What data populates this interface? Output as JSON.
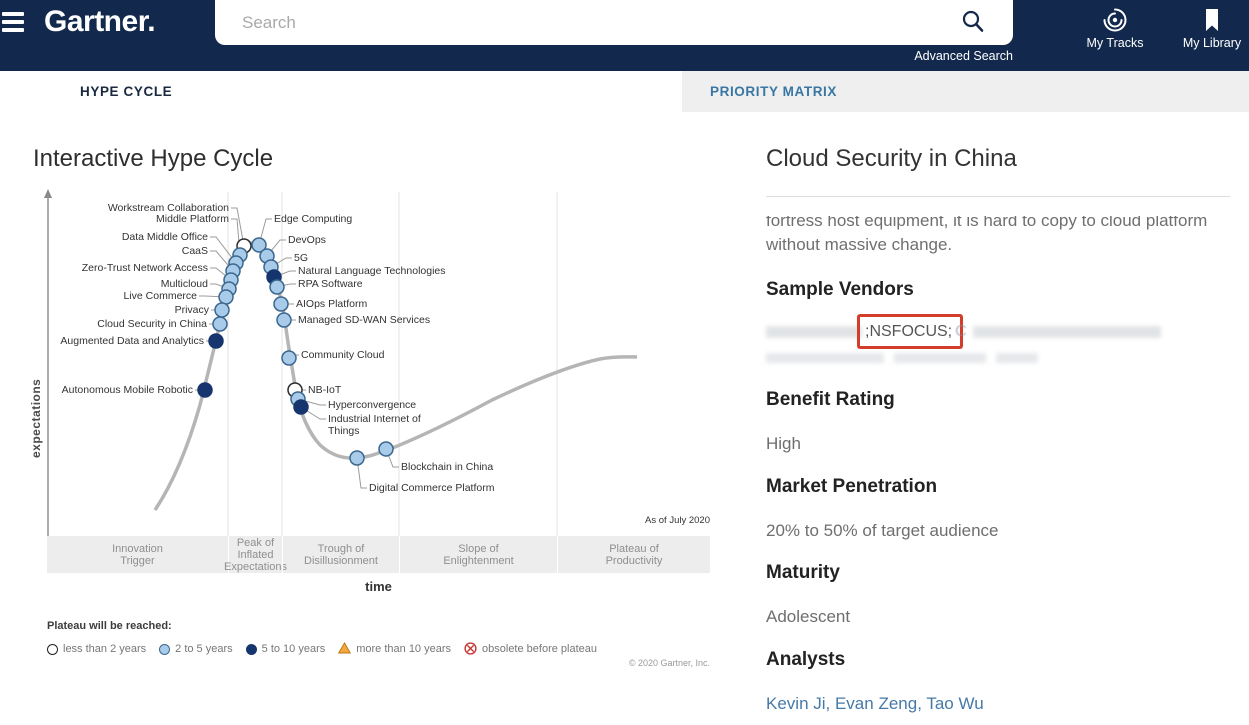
{
  "header": {
    "logo": "Gartner.",
    "search_placeholder": "Search",
    "advanced_search_label": "Advanced Search",
    "nav": [
      {
        "label": "My Tracks",
        "icon": "tracks-icon"
      },
      {
        "label": "My Library",
        "icon": "bookmark-icon"
      }
    ]
  },
  "tabs": [
    {
      "label": "HYPE CYCLE",
      "active": true
    },
    {
      "label": "PRIORITY MATRIX",
      "active": false
    }
  ],
  "chart_data": {
    "type": "scatter",
    "title": "Interactive Hype Cycle",
    "xlabel": "time",
    "ylabel": "expectations",
    "as_of": "As of July 2020",
    "copyright": "© 2020 Gartner, Inc.",
    "phases": [
      "Innovation\nTrigger",
      "Peak of\nInflated\nExpectations",
      "Trough of\nDisillusionment",
      "Slope of\nEnlightenment",
      "Plateau of\nProductivity"
    ],
    "legend_title": "Plateau will be reached:",
    "legend": [
      {
        "category": "less than 2 years",
        "marker": "open"
      },
      {
        "category": "2 to 5 years",
        "marker": "light"
      },
      {
        "category": "5 to 10 years",
        "marker": "dark"
      },
      {
        "category": "more than 10 years",
        "marker": "triangle"
      },
      {
        "category": "obsolete before plateau",
        "marker": "crossed"
      }
    ],
    "colors": {
      "light": "#a9cbea",
      "dark": "#16356e",
      "open": "#ffffff",
      "triangle": "#f5a73b",
      "crossed": "#c63633",
      "curve": "#b5b5b5"
    },
    "points": [
      {
        "label": "Workstream Collaboration",
        "marker": "open",
        "plateau": "less than 2 years",
        "side": "left",
        "dot": [
          244,
          134
        ],
        "anchor": [
          231,
          96
        ]
      },
      {
        "label": "Middle Platform",
        "marker": "light",
        "plateau": "2 to 5 years",
        "side": "left",
        "dot": [
          240,
          143
        ],
        "anchor": [
          231,
          107
        ]
      },
      {
        "label": "Data Middle Office",
        "marker": "light",
        "plateau": "2 to 5 years",
        "side": "left",
        "dot": [
          236,
          151
        ],
        "anchor": [
          210,
          125
        ]
      },
      {
        "label": "CaaS",
        "marker": "light",
        "plateau": "2 to 5 years",
        "side": "left",
        "dot": [
          233,
          159
        ],
        "anchor": [
          210,
          139
        ]
      },
      {
        "label": "Zero-Trust Network Access",
        "marker": "light",
        "plateau": "2 to 5 years",
        "side": "left",
        "dot": [
          231,
          168
        ],
        "anchor": [
          210,
          156
        ]
      },
      {
        "label": "Multicloud",
        "marker": "light",
        "plateau": "2 to 5 years",
        "side": "left",
        "dot": [
          229,
          177
        ],
        "anchor": [
          210,
          172
        ]
      },
      {
        "label": "Live Commerce",
        "marker": "light",
        "plateau": "2 to 5 years",
        "side": "left",
        "dot": [
          226,
          185
        ],
        "anchor": [
          199,
          184
        ]
      },
      {
        "label": "Privacy",
        "marker": "light",
        "plateau": "2 to 5 years",
        "side": "left",
        "dot": [
          222,
          198
        ],
        "anchor": [
          211,
          198
        ]
      },
      {
        "label": "Cloud Security in China",
        "marker": "light",
        "plateau": "2 to 5 years",
        "side": "left",
        "dot": [
          220,
          212
        ],
        "anchor": [
          209,
          212
        ]
      },
      {
        "label": "Augmented Data and Analytics",
        "marker": "dark",
        "plateau": "5 to 10 years",
        "side": "left",
        "dot": [
          216,
          229
        ],
        "anchor": [
          206,
          229
        ]
      },
      {
        "label": "Autonomous Mobile Robotic",
        "marker": "dark",
        "plateau": "5 to 10 years",
        "side": "left",
        "dot": [
          205,
          278
        ],
        "anchor": [
          195,
          278
        ]
      },
      {
        "label": "Edge Computing",
        "marker": "light",
        "plateau": "2 to 5 years",
        "side": "right",
        "dot": [
          259,
          133
        ],
        "anchor": [
          272,
          107
        ]
      },
      {
        "label": "DevOps",
        "marker": "light",
        "plateau": "2 to 5 years",
        "side": "right",
        "dot": [
          267,
          144
        ],
        "anchor": [
          286,
          128
        ]
      },
      {
        "label": "5G",
        "marker": "light",
        "plateau": "2 to 5 years",
        "side": "right",
        "dot": [
          271,
          155
        ],
        "anchor": [
          292,
          146
        ]
      },
      {
        "label": "Natural Language Technologies",
        "marker": "dark",
        "plateau": "5 to 10 years",
        "side": "right",
        "dot": [
          274,
          165
        ],
        "anchor": [
          296,
          159
        ]
      },
      {
        "label": "RPA Software",
        "marker": "light",
        "plateau": "2 to 5 years",
        "side": "right",
        "dot": [
          277,
          175
        ],
        "anchor": [
          296,
          172
        ]
      },
      {
        "label": "AIOps Platform",
        "marker": "light",
        "plateau": "2 to 5 years",
        "side": "right",
        "dot": [
          281,
          192
        ],
        "anchor": [
          294,
          192
        ]
      },
      {
        "label": "Managed SD-WAN Services",
        "marker": "light",
        "plateau": "2 to 5 years",
        "side": "right",
        "dot": [
          284,
          208
        ],
        "anchor": [
          296,
          208
        ]
      },
      {
        "label": "Community Cloud",
        "marker": "light",
        "plateau": "2 to 5 years",
        "side": "right",
        "dot": [
          289,
          246
        ],
        "anchor": [
          299,
          243
        ]
      },
      {
        "label": "NB-IoT",
        "marker": "open",
        "plateau": "less than 2 years",
        "side": "right",
        "dot": [
          295,
          278
        ],
        "anchor": [
          306,
          278
        ]
      },
      {
        "label": "Hyperconvergence",
        "marker": "light",
        "plateau": "2 to 5 years",
        "side": "right",
        "dot": [
          298,
          287
        ],
        "anchor": [
          326,
          293
        ]
      },
      {
        "label": "Industrial Internet of Things",
        "marker": "dark",
        "plateau": "5 to 10 years",
        "side": "right",
        "dot": [
          301,
          295
        ],
        "anchor": [
          326,
          307
        ],
        "w": 105
      },
      {
        "label": "Blockchain in China",
        "marker": "light",
        "plateau": "2 to 5 years",
        "side": "right",
        "dot": [
          386,
          337
        ],
        "anchor": [
          399,
          355
        ]
      },
      {
        "label": "Digital Commerce Platform",
        "marker": "light",
        "plateau": "2 to 5 years",
        "side": "right",
        "dot": [
          357,
          346
        ],
        "anchor": [
          367,
          376
        ]
      }
    ]
  },
  "detail": {
    "title": "Cloud Security in China",
    "body_clipped": "fortress host equipment, it is hard to copy to cloud platform without massive change.",
    "vendors": {
      "visible": ";NSFOCUS;",
      "partial": "C"
    },
    "sections": [
      {
        "heading": "Sample Vendors",
        "value": ""
      },
      {
        "heading": "Benefit Rating",
        "value": "High"
      },
      {
        "heading": "Market Penetration",
        "value": "20% to 50% of target audience"
      },
      {
        "heading": "Maturity",
        "value": "Adolescent"
      },
      {
        "heading": "Analysts",
        "value": "Kevin Ji, Evan Zeng, Tao Wu"
      }
    ]
  }
}
